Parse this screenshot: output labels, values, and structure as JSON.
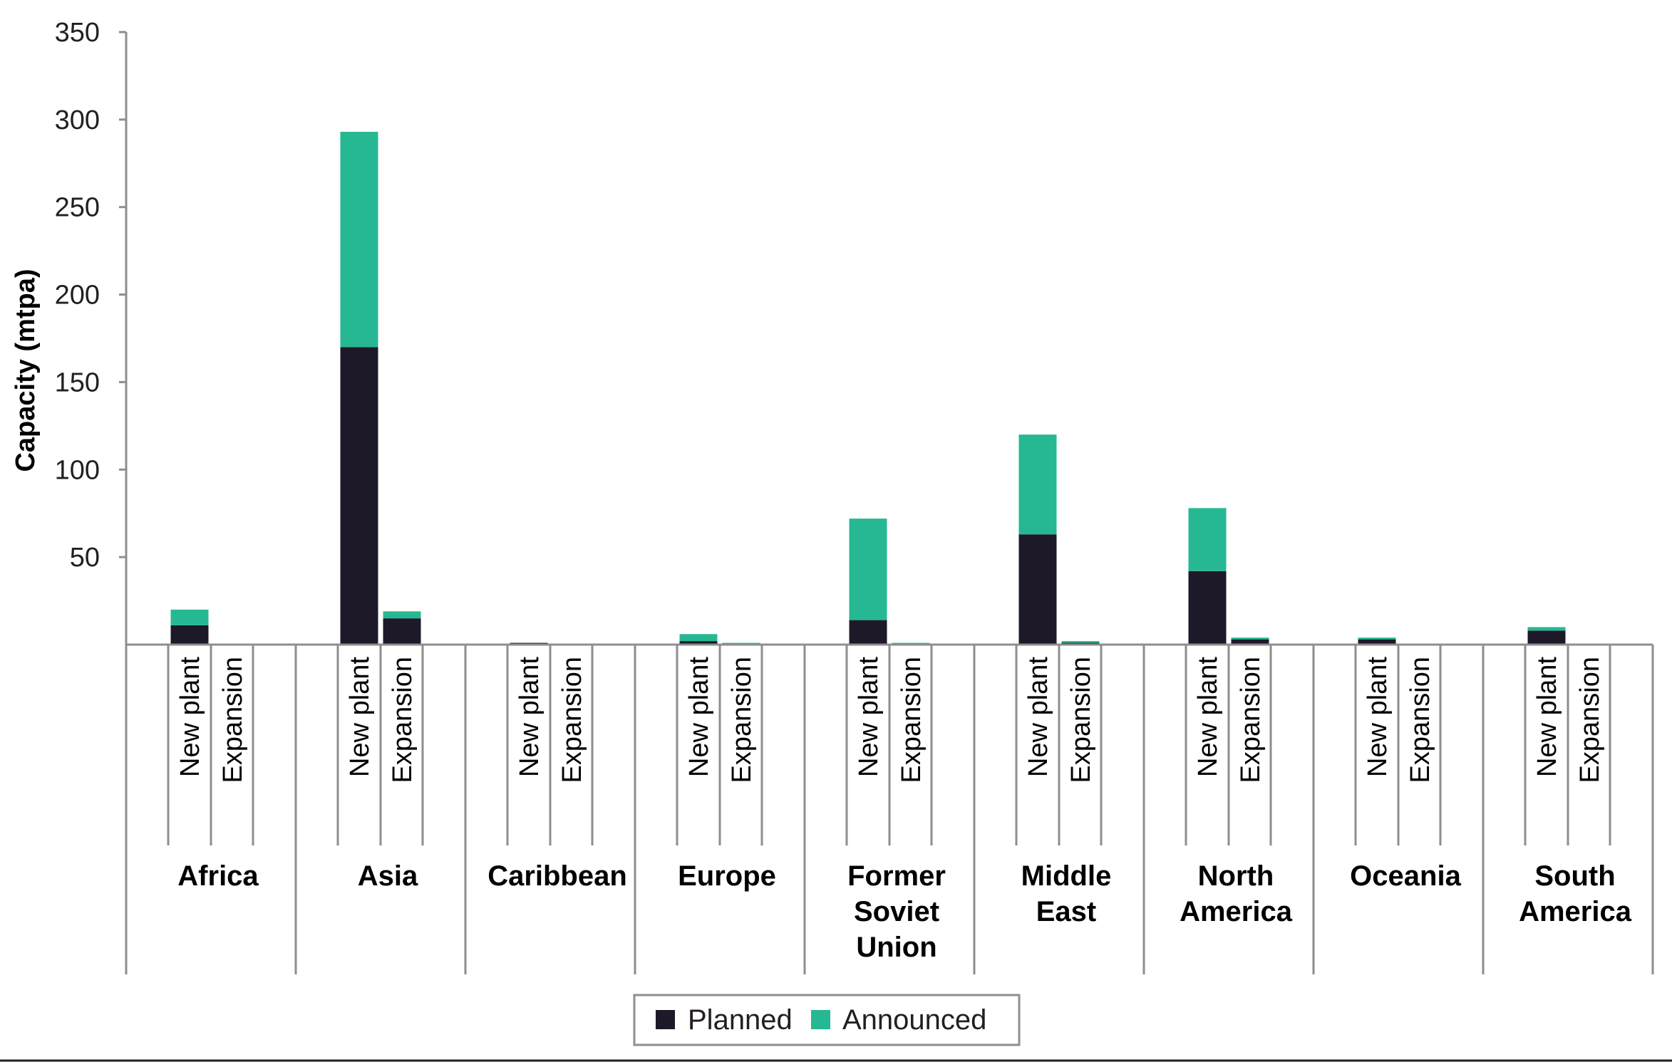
{
  "chart_data": {
    "type": "bar",
    "stacked": true,
    "ylabel": "Capacity (mtpa)",
    "ylim": [
      0,
      350
    ],
    "yticks": [
      50,
      100,
      150,
      200,
      250,
      300,
      350
    ],
    "grid": false,
    "legend_position": "bottom-center",
    "sub_categories": [
      "New plant",
      "Expansion"
    ],
    "regions": [
      {
        "label": [
          "Africa"
        ],
        "bars": [
          {
            "planned": 11,
            "announced": 9
          },
          {
            "planned": 0,
            "announced": 0
          }
        ]
      },
      {
        "label": [
          "Asia"
        ],
        "bars": [
          {
            "planned": 170,
            "announced": 123
          },
          {
            "planned": 15,
            "announced": 4
          }
        ]
      },
      {
        "label": [
          "Caribbean"
        ],
        "bars": [
          {
            "planned": 1,
            "announced": 0
          },
          {
            "planned": 0,
            "announced": 0
          }
        ]
      },
      {
        "label": [
          "Europe"
        ],
        "bars": [
          {
            "planned": 2,
            "announced": 4
          },
          {
            "planned": 0,
            "announced": 1
          }
        ]
      },
      {
        "label": [
          "Former",
          "Soviet",
          "Union"
        ],
        "bars": [
          {
            "planned": 14,
            "announced": 58
          },
          {
            "planned": 0,
            "announced": 1
          }
        ]
      },
      {
        "label": [
          "Middle",
          "East"
        ],
        "bars": [
          {
            "planned": 63,
            "announced": 57
          },
          {
            "planned": 1,
            "announced": 1
          }
        ]
      },
      {
        "label": [
          "North",
          "America"
        ],
        "bars": [
          {
            "planned": 42,
            "announced": 36
          },
          {
            "planned": 3,
            "announced": 1
          }
        ]
      },
      {
        "label": [
          "Oceania"
        ],
        "bars": [
          {
            "planned": 3,
            "announced": 1
          },
          {
            "planned": 0,
            "announced": 0
          }
        ]
      },
      {
        "label": [
          "South",
          "America"
        ],
        "bars": [
          {
            "planned": 8,
            "announced": 2
          },
          {
            "planned": 0,
            "announced": 0
          }
        ]
      }
    ],
    "series": [
      {
        "name": "Planned",
        "key": "planned",
        "color": "#1e1928"
      },
      {
        "name": "Announced",
        "key": "announced",
        "color": "#26b892"
      }
    ]
  }
}
